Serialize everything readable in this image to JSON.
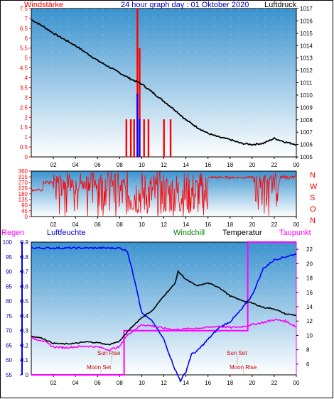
{
  "header": {
    "title": "24 hour graph day : 01 Oktober 2020",
    "left_label": "Windstärke",
    "right_label": "Luftdruck"
  },
  "panel_labels": {
    "regen": "Regen",
    "luftfeuchte": "Luftfeuchte",
    "windchill": "Windchill",
    "temperatur": "Temperatur",
    "taupunkt": "Taupunkt"
  },
  "annotations": {
    "sunrise": "Sun Rise",
    "moonset": "Moon Set",
    "sunset": "Sun Set",
    "moonrise": "Moon Rise"
  },
  "compass_letters": [
    "N",
    "W",
    "S",
    "O",
    "N"
  ],
  "colors": {
    "wind": "#ff0000",
    "gust_blue": "#0000ff",
    "pressure": "#000000",
    "humidity": "#0000ff",
    "temperature": "#000000",
    "dewpoint": "#ff00ff",
    "rain": "#ff00ff",
    "windchill": "#008000",
    "bg_top": "#3a93cf",
    "bg_bottom": "#ffffff"
  },
  "chart_data": [
    {
      "type": "line",
      "id": "wind_pressure",
      "x_ticks": [
        "02",
        "04",
        "06",
        "08",
        "10",
        "12",
        "14",
        "16",
        "18",
        "20",
        "22",
        "00"
      ],
      "left_axis_ticks": [
        "0",
        "0.5",
        "1",
        "1.5",
        "2",
        "2.5",
        "3",
        "3.5",
        "4",
        "4.5",
        "5",
        "5.5",
        "6",
        "6.5",
        "7",
        "7.5"
      ],
      "right_axis_ticks": [
        "1005",
        "1006",
        "1007",
        "1008",
        "1009",
        "1010",
        "1011",
        "1012",
        "1013",
        "1014",
        "1015",
        "1016",
        "1017"
      ],
      "ylim_left": [
        0,
        7.5
      ],
      "ylim_right": [
        1005,
        1017
      ],
      "pressure": {
        "hours": [
          0,
          1,
          2,
          3,
          4,
          5,
          6,
          7,
          8,
          9,
          10,
          11,
          12,
          13,
          14,
          15,
          16,
          17,
          18,
          19,
          20,
          21,
          22,
          23,
          24
        ],
        "values": [
          1016.1,
          1015.6,
          1015.0,
          1014.5,
          1014.0,
          1013.4,
          1012.8,
          1012.3,
          1011.8,
          1011.3,
          1010.9,
          1010.2,
          1009.5,
          1008.8,
          1008.0,
          1007.4,
          1006.9,
          1006.6,
          1006.4,
          1006.1,
          1006.0,
          1006.1,
          1006.5,
          1006.2,
          1006.0
        ]
      },
      "wind_bars": [
        {
          "hour": 8.6,
          "value": 1.9
        },
        {
          "hour": 9.0,
          "value": 1.9
        },
        {
          "hour": 9.3,
          "value": 1.9
        },
        {
          "hour": 9.6,
          "value": 7.5
        },
        {
          "hour": 9.8,
          "value": 5.5
        },
        {
          "hour": 10.2,
          "value": 1.9
        },
        {
          "hour": 10.6,
          "value": 1.9
        },
        {
          "hour": 12.0,
          "value": 1.9
        },
        {
          "hour": 12.6,
          "value": 1.9
        }
      ],
      "blue_bars": [
        {
          "hour": 9.6,
          "value": 3.2
        },
        {
          "hour": 9.8,
          "value": 1.9
        }
      ]
    },
    {
      "type": "line",
      "id": "wind_direction",
      "x_ticks": [
        "02",
        "04",
        "06",
        "08",
        "10",
        "12",
        "14",
        "16",
        "18",
        "20",
        "22",
        "00"
      ],
      "left_axis_ticks": [
        "0",
        "45",
        "90",
        "135",
        "180",
        "225",
        "270",
        "315",
        "360"
      ],
      "ylim": [
        0,
        360
      ]
    },
    {
      "type": "line",
      "id": "temp_humidity",
      "x_ticks": [
        "02",
        "04",
        "06",
        "08",
        "10",
        "12",
        "14",
        "16",
        "18",
        "20",
        "22",
        "00"
      ],
      "rain_ticks": [
        "0",
        "0.1",
        "0.2",
        "0.3",
        "0.4",
        "0.5",
        "0.6",
        "0.7",
        "0.8",
        "0.9"
      ],
      "humidity_ticks": [
        "55",
        "60",
        "65",
        "70",
        "75",
        "80",
        "85",
        "90",
        "95",
        "100"
      ],
      "temp_ticks": [
        "6",
        "8",
        "10",
        "12",
        "14",
        "16",
        "18",
        "20",
        "22"
      ],
      "ylim_humidity": [
        55,
        100
      ],
      "ylim_temp": [
        4.5,
        23
      ],
      "ylim_rain": [
        0,
        0.9
      ],
      "humidity": {
        "hours": [
          0,
          1,
          2,
          3,
          4,
          5,
          6,
          7,
          8,
          8.7,
          9.5,
          10,
          11,
          12,
          13,
          13.5,
          14,
          14.5,
          15,
          16,
          17,
          18,
          19,
          20,
          21,
          22,
          23,
          24
        ],
        "values": [
          98,
          98,
          98,
          98,
          98,
          98,
          98,
          98,
          98,
          97,
          85,
          76,
          73,
          67,
          57,
          53,
          56,
          62,
          63,
          67,
          71,
          73,
          77,
          82,
          91,
          94,
          95,
          96
        ]
      },
      "temperature": {
        "hours": [
          0,
          1,
          2,
          3,
          4,
          5,
          6,
          7,
          8,
          8.5,
          9,
          10,
          11,
          12,
          13,
          13.3,
          13.7,
          14,
          15,
          16,
          17,
          18,
          19,
          20,
          21,
          22,
          23,
          24
        ],
        "values": [
          9.9,
          9.6,
          8.9,
          8.8,
          8.9,
          9.1,
          9.0,
          8.7,
          9.2,
          10.1,
          11.0,
          12.5,
          13.5,
          15.5,
          17.2,
          18.9,
          18.3,
          17.8,
          16.9,
          17.3,
          16.7,
          15.5,
          14.9,
          14.5,
          13.9,
          13.7,
          13.0,
          12.8
        ]
      },
      "dewpoint": {
        "hours": [
          0,
          1,
          2,
          3,
          4,
          5,
          6,
          7,
          8,
          8.5,
          9,
          10,
          11,
          12,
          13,
          14,
          15,
          16,
          17,
          18,
          19,
          20,
          21,
          22,
          23,
          24
        ],
        "values": [
          9.6,
          9.3,
          8.4,
          8.3,
          8.4,
          8.5,
          8.4,
          8.0,
          8.4,
          9.7,
          10.4,
          11.5,
          11.3,
          11.0,
          10.8,
          10.9,
          11.0,
          11.1,
          11.3,
          11.1,
          11.2,
          11.5,
          11.8,
          12.2,
          12.0,
          11.2
        ]
      },
      "rain": {
        "hours": [
          0,
          8.4,
          8.4,
          19.6,
          19.6,
          24
        ],
        "values": [
          0,
          0,
          0.3,
          0.3,
          0.9,
          0.9
        ]
      }
    }
  ]
}
